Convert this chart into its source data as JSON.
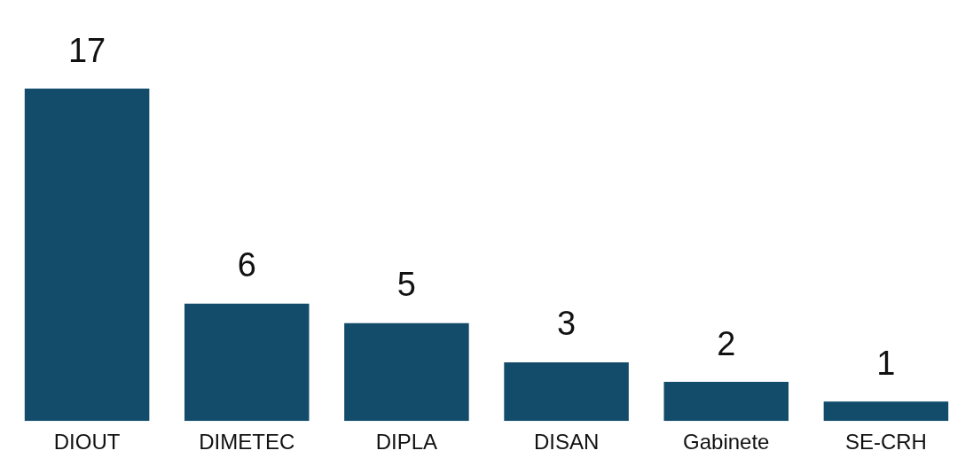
{
  "chart_data": {
    "type": "bar",
    "categories": [
      "DIOUT",
      "DIMETEC",
      "DIPLA",
      "DISAN",
      "Gabinete",
      "SE-CRH"
    ],
    "values": [
      17,
      6,
      5,
      3,
      2,
      1
    ],
    "color": "#124c6a",
    "data_labels": true
  }
}
